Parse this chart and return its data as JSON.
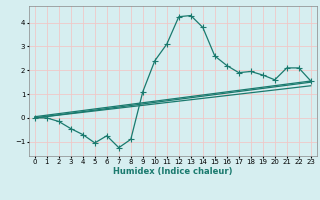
{
  "xlabel": "Humidex (Indice chaleur)",
  "ylabel": "",
  "background_color": "#d6eef0",
  "grid_color": "#f0c8c8",
  "line_color": "#1a7a6e",
  "xlim": [
    -0.5,
    23.5
  ],
  "ylim": [
    -1.6,
    4.7
  ],
  "xticks": [
    0,
    1,
    2,
    3,
    4,
    5,
    6,
    7,
    8,
    9,
    10,
    11,
    12,
    13,
    14,
    15,
    16,
    17,
    18,
    19,
    20,
    21,
    22,
    23
  ],
  "yticks": [
    -1,
    0,
    1,
    2,
    3,
    4
  ],
  "series1_x": [
    0,
    1,
    2,
    3,
    4,
    5,
    6,
    7,
    8,
    9,
    10,
    11,
    12,
    13,
    14,
    15,
    16,
    17,
    18,
    19,
    20,
    21,
    22,
    23
  ],
  "series1_y": [
    0.0,
    0.0,
    -0.15,
    -0.45,
    -0.7,
    -1.05,
    -0.75,
    -1.25,
    -0.9,
    1.1,
    2.4,
    3.1,
    4.25,
    4.3,
    3.8,
    2.6,
    2.2,
    1.9,
    1.95,
    1.8,
    1.6,
    2.1,
    2.1,
    1.55
  ],
  "series2_x": [
    0,
    23
  ],
  "series2_y": [
    0.0,
    1.5
  ],
  "series3_x": [
    0,
    23
  ],
  "series3_y": [
    0.0,
    1.35
  ],
  "series4_x": [
    0,
    23
  ],
  "series4_y": [
    0.05,
    1.55
  ],
  "marker": "+",
  "markersize": 4,
  "linewidth": 0.9,
  "label_fontsize": 6,
  "tick_fontsize": 5
}
